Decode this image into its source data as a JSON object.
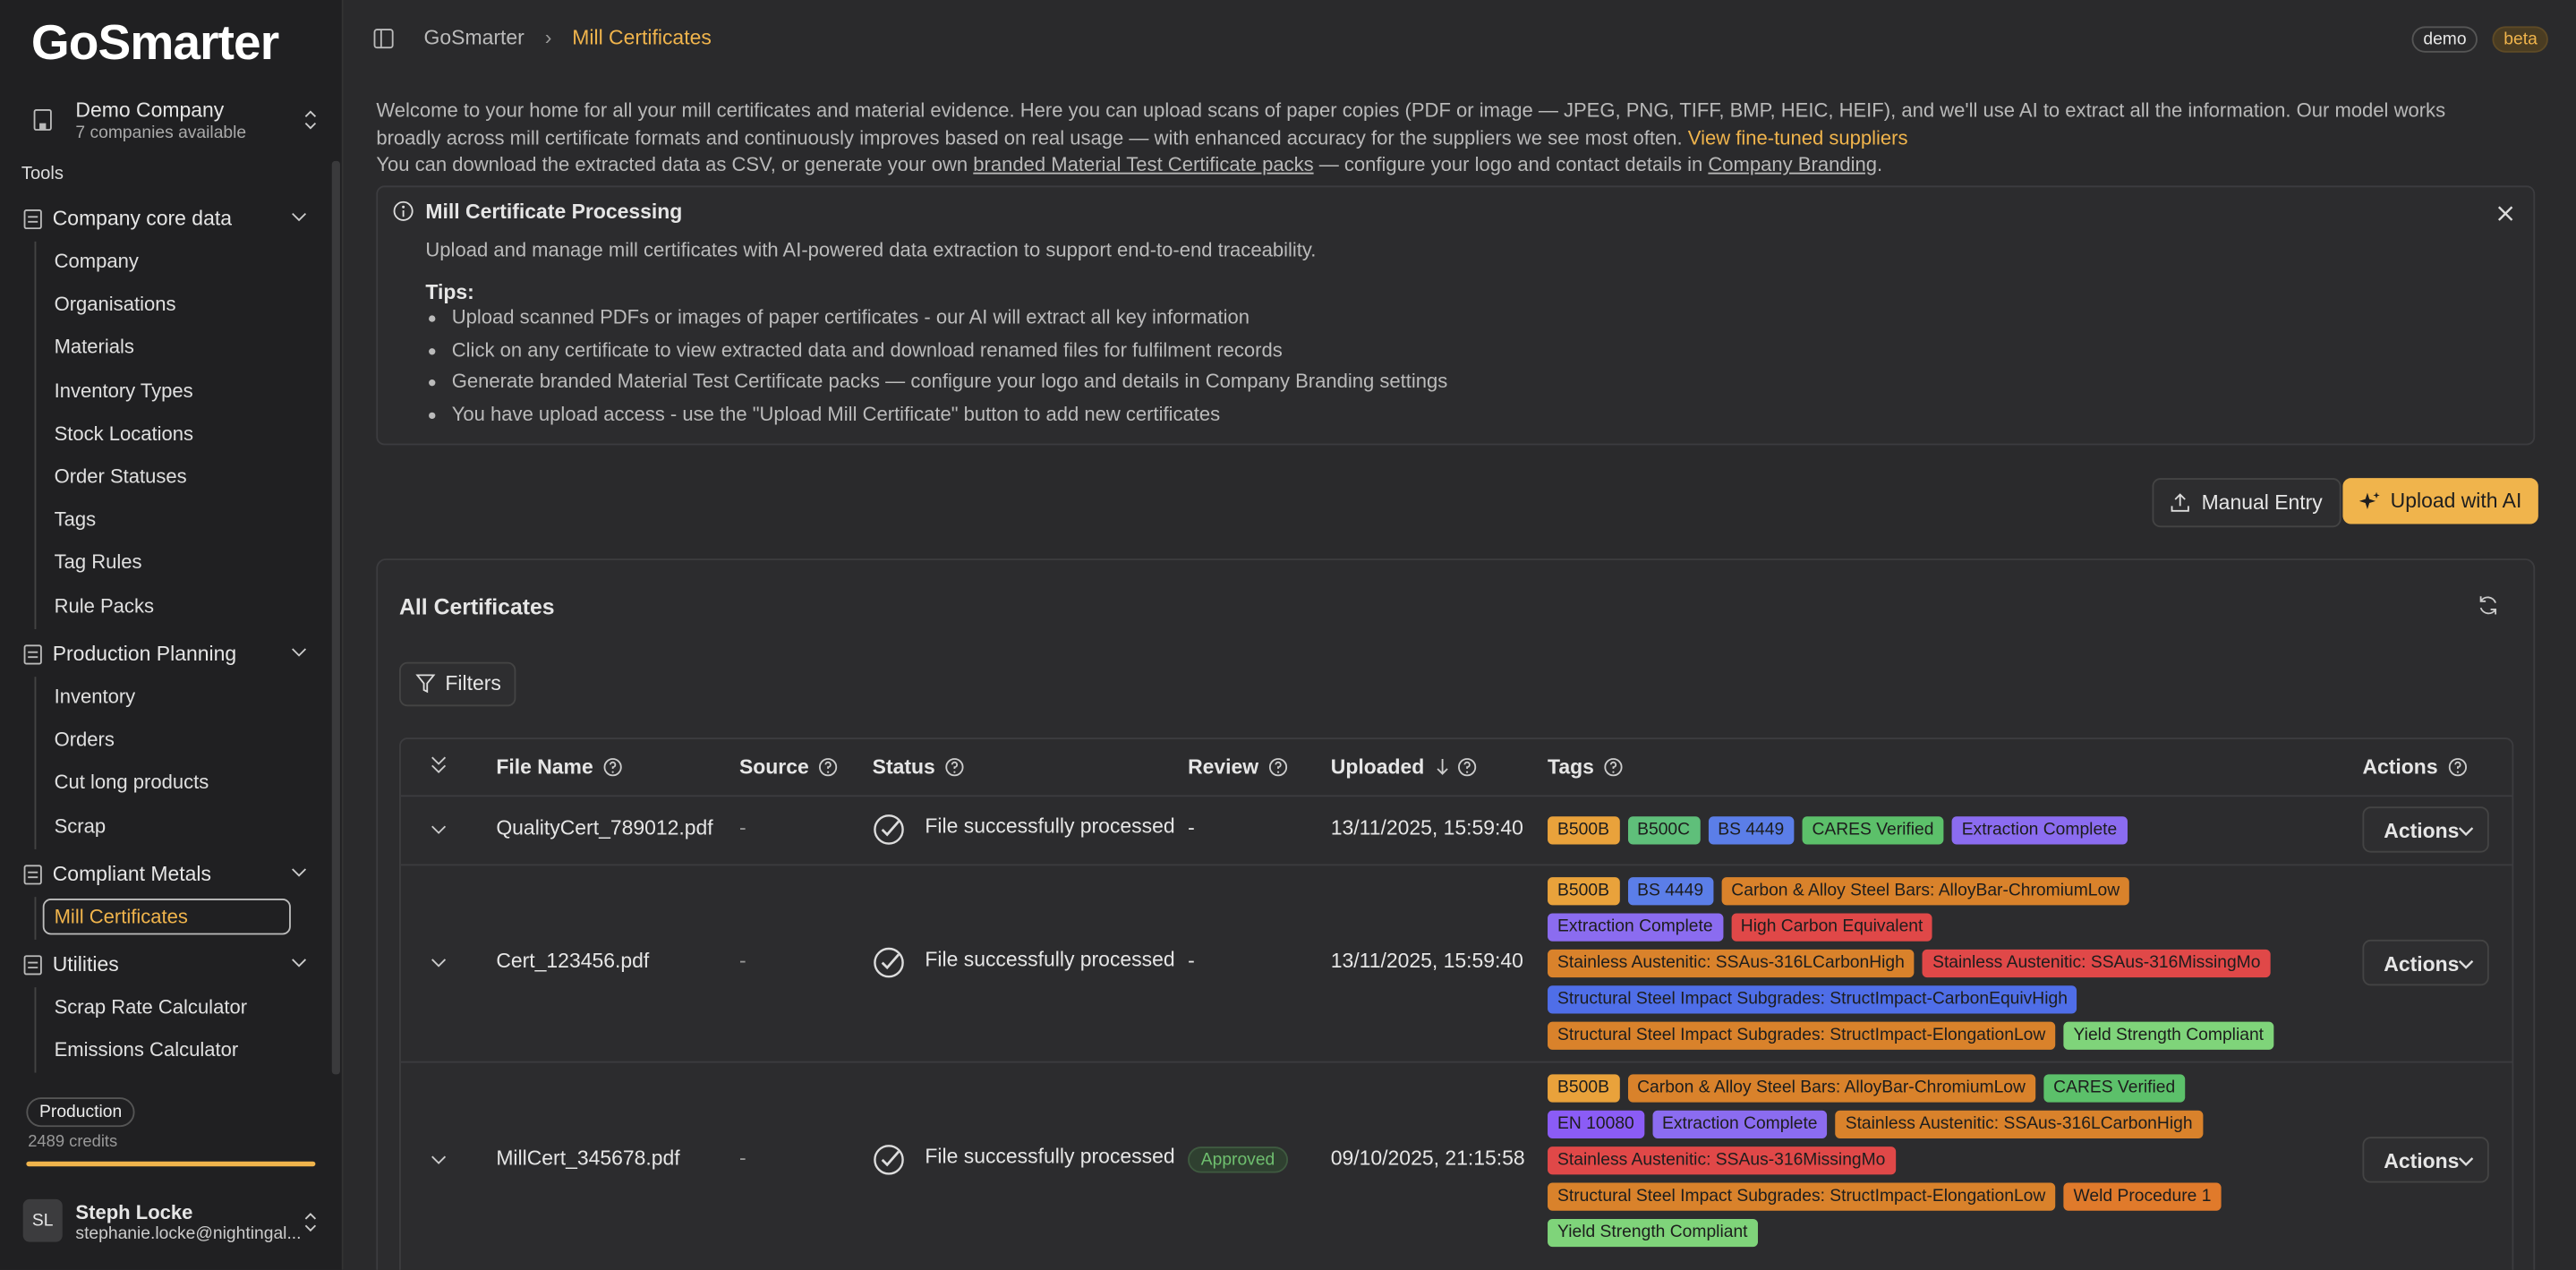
{
  "sidebar": {
    "logo": "GoSmarter",
    "company": {
      "name": "Demo Company",
      "subtitle": "7 companies available"
    },
    "section": "Tools",
    "groups": [
      {
        "label": "Company core data",
        "items": [
          "Company",
          "Organisations",
          "Materials",
          "Inventory Types",
          "Stock Locations",
          "Order Statuses",
          "Tags",
          "Tag Rules",
          "Rule Packs"
        ]
      },
      {
        "label": "Production Planning",
        "items": [
          "Inventory",
          "Orders",
          "Cut long products",
          "Scrap"
        ]
      },
      {
        "label": "Compliant Metals",
        "items": [
          "Mill Certificates"
        ]
      },
      {
        "label": "Utilities",
        "items": [
          "Scrap Rate Calculator",
          "Emissions Calculator"
        ]
      }
    ],
    "plan": "Production",
    "credits": "2489 credits",
    "user": {
      "initials": "SL",
      "name": "Steph Locke",
      "email": "stephanie.locke@nightingal..."
    }
  },
  "header": {
    "breadcrumb": [
      "GoSmarter",
      "Mill Certificates"
    ],
    "badges": [
      "demo",
      "beta"
    ]
  },
  "intro": {
    "line1": "Welcome to your home for all your mill certificates and material evidence. Here you can upload scans of paper copies (PDF or image — JPEG, PNG, TIFF, BMP, HEIC, HEIF), and we'll use AI to extract all the information. Our model works broadly across mill certificate formats and continuously improves based on real usage — with enhanced accuracy for the suppliers we see most often.",
    "line1_link": "View fine-tuned suppliers",
    "line2": [
      "You can download the extracted data as CSV, or generate your own ",
      "branded Material Test Certificate packs",
      " — configure your logo and contact details in ",
      "Company Branding",
      "."
    ]
  },
  "info": {
    "title": "Mill Certificate Processing",
    "description": "Upload and manage mill certificates with AI-powered data extraction to support end-to-end traceability.",
    "tips_label": "Tips:",
    "tips": [
      "Upload scanned PDFs or images of paper certificates - our AI will extract all key information",
      "Click on any certificate to view extracted data and download renamed files for fulfilment records",
      "Generate branded Material Test Certificate packs — configure your logo and details in Company Branding settings",
      "You have upload access - use the \"Upload Mill Certificate\" button to add new certificates"
    ]
  },
  "buttons": [
    "Manual Entry",
    "Upload with AI"
  ],
  "card": {
    "title": "All Certificates",
    "filters": "Filters",
    "columns": [
      "File Name",
      "Source",
      "Status",
      "Review",
      "Uploaded",
      "Tags",
      "Actions"
    ],
    "rows": [
      {
        "file": "QualityCert_789012.pdf",
        "source": "-",
        "status": "File successfully processed",
        "review": "-",
        "uploaded": "13/11/2025, 15:59:40",
        "action": "Actions",
        "tags": [
          {
            "text": "B500B",
            "color": "#e9a23b"
          },
          {
            "text": "B500C",
            "color": "#5fbf7a"
          },
          {
            "text": "BS 4449",
            "color": "#5b7ee8"
          },
          {
            "text": "CARES Verified",
            "color": "#5cc06a"
          },
          {
            "text": "Extraction Complete",
            "color": "#8b6cf0"
          }
        ]
      },
      {
        "file": "Cert_123456.pdf",
        "source": "-",
        "status": "File successfully processed",
        "review": "-",
        "uploaded": "13/11/2025, 15:59:40",
        "action": "Actions",
        "tags": [
          {
            "text": "B500B",
            "color": "#e9a23b"
          },
          {
            "text": "BS 4449",
            "color": "#5b7ee8"
          },
          {
            "text": "Carbon & Alloy Steel Bars: AlloyBar-ChromiumLow",
            "color": "#d9822b"
          },
          {
            "text": "Extraction Complete",
            "color": "#8b6cf0"
          },
          {
            "text": "High Carbon Equivalent",
            "color": "#e04848"
          },
          {
            "text": "Stainless Austenitic: SSAus-316LCarbonHigh",
            "color": "#d9822b"
          },
          {
            "text": "Stainless Austenitic: SSAus-316MissingMo",
            "color": "#e04848"
          },
          {
            "text": "Structural Steel Impact Subgrades: StructImpact-CarbonEquivHigh",
            "color": "#4f6ee8"
          },
          {
            "text": "Structural Steel Impact Subgrades: StructImpact-ElongationLow",
            "color": "#d9822b"
          },
          {
            "text": "Yield Strength Compliant",
            "color": "#7fd47a"
          }
        ]
      },
      {
        "file": "MillCert_345678.pdf",
        "source": "-",
        "status": "File successfully processed",
        "review": "Approved",
        "uploaded": "09/10/2025, 21:15:58",
        "action": "Actions",
        "tags": [
          {
            "text": "B500B",
            "color": "#e9a23b"
          },
          {
            "text": "Carbon & Alloy Steel Bars: AlloyBar-ChromiumLow",
            "color": "#d9822b"
          },
          {
            "text": "CARES Verified",
            "color": "#5cc06a"
          },
          {
            "text": "EN 10080",
            "color": "#8b5cf6"
          },
          {
            "text": "Extraction Complete",
            "color": "#8b6cf0"
          },
          {
            "text": "Stainless Austenitic: SSAus-316LCarbonHigh",
            "color": "#d9822b"
          },
          {
            "text": "Stainless Austenitic: SSAus-316MissingMo",
            "color": "#e04848"
          },
          {
            "text": "Structural Steel Impact Subgrades: StructImpact-ElongationLow",
            "color": "#d9822b"
          },
          {
            "text": "Weld Procedure 1",
            "color": "#e07a2b"
          },
          {
            "text": "Yield Strength Compliant",
            "color": "#7fd47a"
          }
        ]
      }
    ]
  }
}
